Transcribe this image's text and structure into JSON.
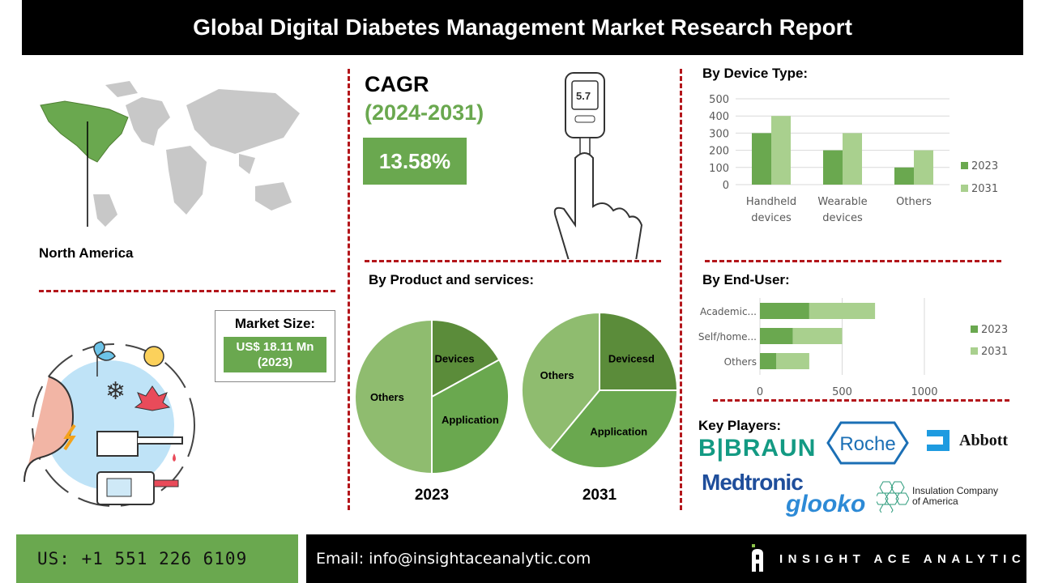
{
  "title": "Global Digital Diabetes Management Market Research Report",
  "region": {
    "label": "North America"
  },
  "cagr": {
    "label": "CAGR",
    "period": "(2024-2031)",
    "value": "13.58%",
    "meter_reading": "5.7"
  },
  "market_size": {
    "label": "Market Size:",
    "value": "US$ 18.11 Mn",
    "year": "(2023)"
  },
  "colors": {
    "dark_green": "#5b8c3a",
    "green": "#6aa84f",
    "light_green": "#a9d08e",
    "pie_light": "#8fbc6f",
    "accent_red": "#b3161b"
  },
  "chart_data": [
    {
      "type": "bar",
      "title": "By Device Type:",
      "categories": [
        "Handheld devices",
        "Wearable devices",
        "Others"
      ],
      "category_lines": [
        [
          "Handheld",
          "devices"
        ],
        [
          "Wearable",
          "devices"
        ],
        [
          "Others"
        ]
      ],
      "series": [
        {
          "name": "2023",
          "values": [
            300,
            200,
            100
          ]
        },
        {
          "name": "2031",
          "values": [
            400,
            300,
            200
          ]
        }
      ],
      "ylim": [
        0,
        500
      ],
      "yticks": [
        "0",
        "100",
        "200",
        "300",
        "400",
        "500"
      ],
      "grid": true,
      "legend": "right"
    },
    {
      "type": "pie",
      "title": "By Product and services:",
      "label": "2023",
      "slices": [
        {
          "name": "Devices",
          "value": 17
        },
        {
          "name": "Application",
          "value": 33
        },
        {
          "name": "Others",
          "value": 50
        }
      ]
    },
    {
      "type": "pie",
      "label": "2031",
      "slices": [
        {
          "name": "Devicesd",
          "value": 25
        },
        {
          "name": "Application",
          "value": 36
        },
        {
          "name": "Others",
          "value": 39
        }
      ]
    },
    {
      "type": "bar",
      "orientation": "horizontal",
      "stacked": true,
      "title": "By End-User:",
      "categories": [
        "Academic...",
        "Self/home...",
        "Others"
      ],
      "series": [
        {
          "name": "2023",
          "values": [
            300,
            200,
            100
          ]
        },
        {
          "name": "2031",
          "values": [
            400,
            300,
            200
          ]
        }
      ],
      "xlim": [
        0,
        1000
      ],
      "xticks": [
        "0",
        "500",
        "1000"
      ],
      "grid": true,
      "legend": "right"
    }
  ],
  "key_players": {
    "label": "Key Players:",
    "logos": [
      "B|BRAUN",
      "Roche",
      "Abbott",
      "Medtronic",
      "glooko",
      "Insulation Company",
      "of America"
    ]
  },
  "footer": {
    "phone": "US: +1 551 226 6109",
    "email": "Email: info@insightaceanalytic.com",
    "brand": "INSIGHT ACE ANALYTIC"
  }
}
